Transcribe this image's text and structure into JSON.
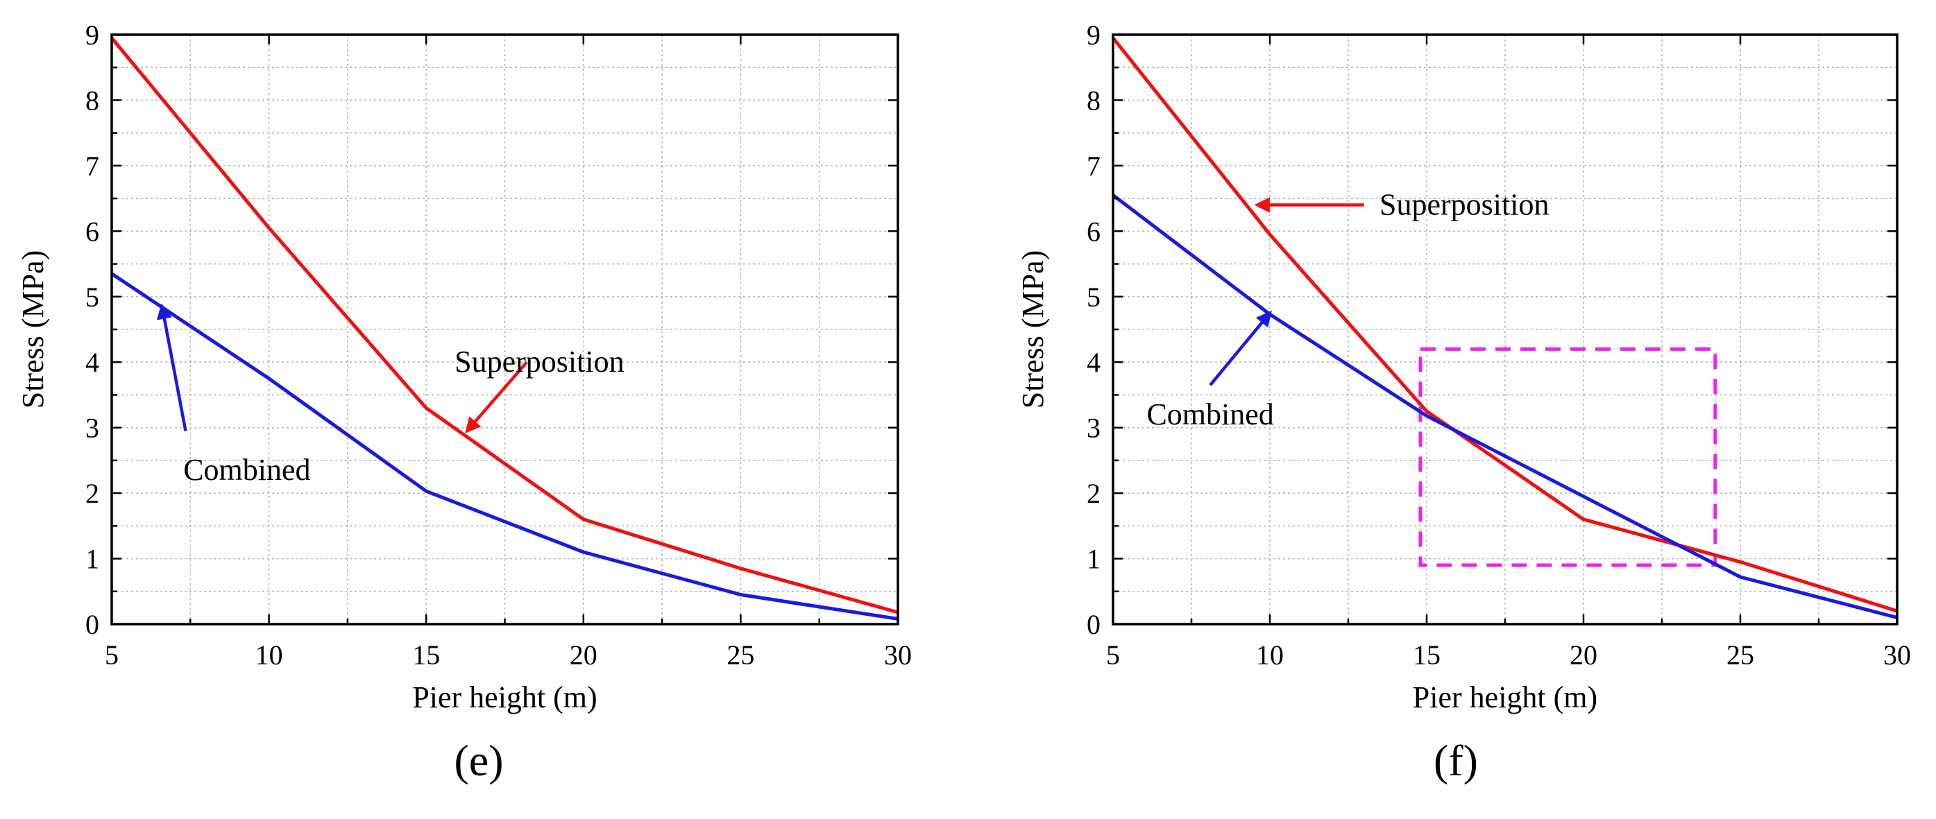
{
  "chart_data": [
    {
      "type": "line",
      "panel_label": "(e)",
      "xlabel": "Pier height (m)",
      "ylabel": "Stress (MPa)",
      "xlim": [
        5,
        30
      ],
      "ylim": [
        0,
        9
      ],
      "grid": true,
      "x_ticks": [
        "5",
        "10",
        "15",
        "20",
        "25",
        "30"
      ],
      "y_ticks": [
        "0",
        "1",
        "2",
        "3",
        "4",
        "5",
        "6",
        "7",
        "8",
        "9"
      ],
      "x": [
        5,
        10,
        15,
        20,
        25,
        30
      ],
      "series": [
        {
          "name": "Superposition",
          "color": "#ee1111",
          "values": [
            8.95,
            6.05,
            3.3,
            1.6,
            0.85,
            0.18
          ]
        },
        {
          "name": "Combined",
          "color": "#1a1adf",
          "values": [
            5.35,
            3.75,
            2.03,
            1.1,
            0.45,
            0.08
          ]
        }
      ],
      "annotations": [
        {
          "text": "Superposition",
          "series": "Superposition",
          "text_at": [
            18.6,
            4.0
          ],
          "arrow_from": [
            18.2,
            4.0
          ],
          "arrow_to": [
            16.3,
            2.95
          ]
        },
        {
          "text": "Combined",
          "series": "Combined",
          "text_at": [
            9.3,
            2.35
          ],
          "arrow_from": [
            7.35,
            2.95
          ],
          "arrow_to": [
            6.6,
            4.85
          ]
        }
      ]
    },
    {
      "type": "line",
      "panel_label": "(f)",
      "xlabel": "Pier height (m)",
      "ylabel": "Stress (MPa)",
      "xlim": [
        5,
        30
      ],
      "ylim": [
        0,
        9
      ],
      "grid": true,
      "x_ticks": [
        "5",
        "10",
        "15",
        "20",
        "25",
        "30"
      ],
      "y_ticks": [
        "0",
        "1",
        "2",
        "3",
        "4",
        "5",
        "6",
        "7",
        "8",
        "9"
      ],
      "x": [
        5,
        10,
        15,
        20,
        25,
        30
      ],
      "series": [
        {
          "name": "Superposition",
          "color": "#ee1111",
          "values": [
            8.95,
            5.95,
            3.25,
            1.6,
            0.95,
            0.2
          ]
        },
        {
          "name": "Combined",
          "color": "#1a1adf",
          "values": [
            6.55,
            4.73,
            3.18,
            1.95,
            0.72,
            0.1
          ]
        }
      ],
      "highlight_box": {
        "color": "#ee22ee",
        "x_range": [
          14.8,
          24.2
        ],
        "y_range": [
          0.9,
          4.2
        ]
      },
      "annotations": [
        {
          "text": "Superposition",
          "series": "Superposition",
          "text_at": [
            16.2,
            6.4
          ],
          "arrow_from": [
            13.0,
            6.4
          ],
          "arrow_to": [
            9.6,
            6.4
          ]
        },
        {
          "text": "Combined",
          "series": "Combined",
          "text_at": [
            8.1,
            3.2
          ],
          "arrow_from": [
            8.1,
            3.65
          ],
          "arrow_to": [
            10.0,
            4.75
          ]
        }
      ]
    }
  ]
}
